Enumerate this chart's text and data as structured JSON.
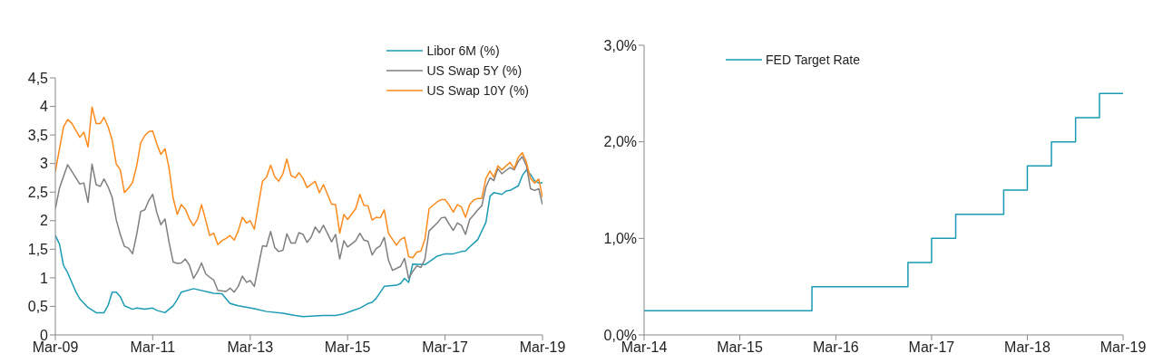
{
  "chart_data": [
    {
      "type": "line",
      "legend": "top right",
      "xlim": [
        "2009-03",
        "2019-03"
      ],
      "xticks": [
        {
          "value": "2009-03",
          "label": "Mar-09"
        },
        {
          "value": "2011-03",
          "label": "Mar-11"
        },
        {
          "value": "2013-03",
          "label": "Mar-13"
        },
        {
          "value": "2015-03",
          "label": "Mar-15"
        },
        {
          "value": "2017-03",
          "label": "Mar-17"
        },
        {
          "value": "2019-03",
          "label": "Mar-19"
        }
      ],
      "ylim": [
        0,
        4.5
      ],
      "yticks": [
        0,
        {
          "value": 0.5,
          "label": "0,5"
        },
        1,
        {
          "value": 1.5,
          "label": "1,5"
        },
        2,
        {
          "value": 2.5,
          "label": "2,5"
        },
        3,
        {
          "value": 3.5,
          "label": "3,5"
        },
        4,
        {
          "value": 4.5,
          "label": "4,5"
        }
      ],
      "series": [
        {
          "name": "Libor 6M (%)",
          "color": "#1a9bb3",
          "x": [
            "2009-03",
            "2009-04",
            "2009-05",
            "2009-06",
            "2009-08",
            "2009-09",
            "2009-11",
            "2010-01",
            "2010-03",
            "2010-04",
            "2010-05",
            "2010-06",
            "2010-07",
            "2010-08",
            "2010-10",
            "2010-11",
            "2011-01",
            "2011-03",
            "2011-04",
            "2011-06",
            "2011-08",
            "2011-09",
            "2011-10",
            "2012-01",
            "2012-06",
            "2012-08",
            "2012-10",
            "2012-12",
            "2013-04",
            "2013-07",
            "2013-11",
            "2014-02",
            "2014-04",
            "2014-09",
            "2014-12",
            "2015-02",
            "2015-04",
            "2015-06",
            "2015-08",
            "2015-09",
            "2015-10",
            "2015-12",
            "2016-03",
            "2016-04",
            "2016-05",
            "2016-06",
            "2016-07",
            "2016-10",
            "2016-12",
            "2017-01",
            "2017-03",
            "2017-05",
            "2017-07",
            "2017-08",
            "2017-09",
            "2017-11",
            "2018-01",
            "2018-02",
            "2018-03",
            "2018-05",
            "2018-06",
            "2018-07",
            "2018-09",
            "2018-10",
            "2018-11",
            "2018-12",
            "2019-01",
            "2019-02",
            "2019-03"
          ],
          "values": [
            1.74,
            1.59,
            1.22,
            1.09,
            0.76,
            0.63,
            0.48,
            0.39,
            0.39,
            0.52,
            0.75,
            0.75,
            0.67,
            0.51,
            0.45,
            0.47,
            0.45,
            0.47,
            0.43,
            0.39,
            0.51,
            0.62,
            0.75,
            0.81,
            0.73,
            0.72,
            0.55,
            0.51,
            0.46,
            0.41,
            0.38,
            0.34,
            0.32,
            0.34,
            0.34,
            0.37,
            0.42,
            0.47,
            0.55,
            0.57,
            0.64,
            0.85,
            0.87,
            0.9,
            0.99,
            0.92,
            1.24,
            1.23,
            1.33,
            1.38,
            1.42,
            1.42,
            1.46,
            1.47,
            1.54,
            1.67,
            1.97,
            2.43,
            2.49,
            2.46,
            2.52,
            2.53,
            2.61,
            2.79,
            2.89,
            2.81,
            2.7,
            2.66,
            2.66
          ]
        },
        {
          "name": "US Swap 5Y (%)",
          "color": "#7f7f7f",
          "x": [
            "2009-03",
            "2009-04",
            "2009-06",
            "2009-09",
            "2009-10",
            "2009-11",
            "2009-12",
            "2010-01",
            "2010-02",
            "2010-03",
            "2010-04",
            "2010-05",
            "2010-06",
            "2010-07",
            "2010-08",
            "2010-09",
            "2010-10",
            "2010-11",
            "2010-12",
            "2011-01",
            "2011-02",
            "2011-03",
            "2011-04",
            "2011-05",
            "2011-06",
            "2011-07",
            "2011-08",
            "2011-09",
            "2011-10",
            "2011-11",
            "2011-12",
            "2012-01",
            "2012-02",
            "2012-03",
            "2012-04",
            "2012-05",
            "2012-06",
            "2012-07",
            "2012-09",
            "2012-10",
            "2012-11",
            "2012-12",
            "2013-01",
            "2013-02",
            "2013-03",
            "2013-04",
            "2013-05",
            "2013-06",
            "2013-07",
            "2013-08",
            "2013-09",
            "2013-10",
            "2013-11",
            "2013-12",
            "2014-01",
            "2014-02",
            "2014-03",
            "2014-04",
            "2014-05",
            "2014-06",
            "2014-07",
            "2014-08",
            "2014-09",
            "2014-11",
            "2014-12",
            "2015-01",
            "2015-02",
            "2015-03",
            "2015-05",
            "2015-06",
            "2015-07",
            "2015-08",
            "2015-09",
            "2015-10",
            "2015-11",
            "2015-12",
            "2016-01",
            "2016-02",
            "2016-04",
            "2016-05",
            "2016-06",
            "2016-07",
            "2016-08",
            "2016-09",
            "2016-10",
            "2016-11",
            "2017-01",
            "2017-02",
            "2017-03",
            "2017-04",
            "2017-05",
            "2017-06",
            "2017-07",
            "2017-08",
            "2017-09",
            "2017-10",
            "2017-11",
            "2017-12",
            "2018-01",
            "2018-02",
            "2018-03",
            "2018-04",
            "2018-05",
            "2018-06",
            "2018-07",
            "2018-08",
            "2018-09",
            "2018-10",
            "2018-11",
            "2018-12",
            "2019-01",
            "2019-02",
            "2019-03"
          ],
          "values": [
            2.21,
            2.57,
            2.98,
            2.64,
            2.66,
            2.32,
            2.99,
            2.63,
            2.6,
            2.73,
            2.59,
            2.41,
            2.01,
            1.76,
            1.55,
            1.52,
            1.42,
            1.76,
            2.16,
            2.19,
            2.36,
            2.46,
            2.14,
            1.93,
            2.03,
            1.63,
            1.28,
            1.25,
            1.26,
            1.33,
            1.22,
            0.99,
            1.11,
            1.26,
            1.07,
            1.01,
            0.96,
            0.78,
            0.76,
            0.82,
            0.75,
            0.85,
            1.03,
            0.92,
            0.95,
            0.85,
            1.2,
            1.56,
            1.55,
            1.81,
            1.53,
            1.46,
            1.48,
            1.77,
            1.61,
            1.61,
            1.79,
            1.76,
            1.62,
            1.71,
            1.89,
            1.79,
            1.92,
            1.63,
            1.76,
            1.33,
            1.65,
            1.54,
            1.65,
            1.78,
            1.66,
            1.64,
            1.4,
            1.51,
            1.56,
            1.71,
            1.31,
            1.13,
            1.2,
            1.34,
            0.99,
            1.11,
            1.21,
            1.18,
            1.33,
            1.82,
            1.96,
            2.05,
            2.06,
            1.94,
            1.83,
            1.96,
            1.92,
            1.76,
            2.02,
            2.1,
            2.19,
            2.26,
            2.59,
            2.75,
            2.7,
            2.91,
            2.82,
            2.88,
            2.93,
            2.89,
            3.04,
            3.12,
            2.96,
            2.56,
            2.53,
            2.56,
            2.28
          ]
        },
        {
          "name": "US Swap 10Y (%)",
          "color": "#ff8a1c",
          "x": [
            "2009-03",
            "2009-05",
            "2009-06",
            "2009-07",
            "2009-09",
            "2009-10",
            "2009-11",
            "2009-12",
            "2010-01",
            "2010-02",
            "2010-03",
            "2010-04",
            "2010-05",
            "2010-06",
            "2010-07",
            "2010-08",
            "2010-09",
            "2010-10",
            "2010-11",
            "2010-12",
            "2011-01",
            "2011-02",
            "2011-03",
            "2011-04",
            "2011-05",
            "2011-06",
            "2011-07",
            "2011-08",
            "2011-09",
            "2011-10",
            "2011-11",
            "2011-12",
            "2012-01",
            "2012-02",
            "2012-03",
            "2012-04",
            "2012-05",
            "2012-06",
            "2012-07",
            "2012-08",
            "2012-09",
            "2012-10",
            "2012-11",
            "2012-12",
            "2013-01",
            "2013-02",
            "2013-03",
            "2013-04",
            "2013-05",
            "2013-06",
            "2013-07",
            "2013-08",
            "2013-09",
            "2013-10",
            "2013-11",
            "2013-12",
            "2014-01",
            "2014-02",
            "2014-03",
            "2014-04",
            "2014-05",
            "2014-07",
            "2014-08",
            "2014-09",
            "2014-11",
            "2014-12",
            "2015-01",
            "2015-02",
            "2015-03",
            "2015-05",
            "2015-06",
            "2015-07",
            "2015-08",
            "2015-09",
            "2015-10",
            "2015-11",
            "2015-12",
            "2016-01",
            "2016-03",
            "2016-04",
            "2016-05",
            "2016-06",
            "2016-07",
            "2016-08",
            "2016-09",
            "2016-10",
            "2016-11",
            "2017-01",
            "2017-02",
            "2017-03",
            "2017-04",
            "2017-05",
            "2017-06",
            "2017-07",
            "2017-08",
            "2017-09",
            "2017-10",
            "2017-11",
            "2017-12",
            "2018-01",
            "2018-02",
            "2018-03",
            "2018-04",
            "2018-05",
            "2018-06",
            "2018-07",
            "2018-08",
            "2018-09",
            "2018-10",
            "2018-11",
            "2018-12",
            "2019-01",
            "2019-02",
            "2019-03"
          ],
          "values": [
            2.86,
            3.64,
            3.77,
            3.71,
            3.46,
            3.55,
            3.29,
            3.99,
            3.7,
            3.7,
            3.81,
            3.64,
            3.41,
            2.99,
            2.89,
            2.49,
            2.57,
            2.67,
            2.96,
            3.36,
            3.49,
            3.56,
            3.57,
            3.34,
            3.16,
            3.26,
            2.93,
            2.4,
            2.11,
            2.28,
            2.2,
            2.03,
            1.91,
            2.03,
            2.28,
            2.01,
            1.74,
            1.78,
            1.58,
            1.65,
            1.69,
            1.74,
            1.66,
            1.82,
            2.06,
            1.96,
            2.0,
            1.85,
            2.27,
            2.69,
            2.76,
            2.97,
            2.77,
            2.69,
            2.82,
            3.08,
            2.79,
            2.75,
            2.84,
            2.74,
            2.58,
            2.69,
            2.49,
            2.63,
            2.29,
            2.28,
            1.78,
            2.11,
            2.02,
            2.21,
            2.46,
            2.27,
            2.26,
            2.01,
            2.06,
            2.05,
            2.19,
            1.78,
            1.57,
            1.67,
            1.71,
            1.37,
            1.35,
            1.45,
            1.47,
            1.68,
            2.21,
            2.33,
            2.37,
            2.37,
            2.27,
            2.15,
            2.28,
            2.24,
            2.06,
            2.28,
            2.36,
            2.39,
            2.39,
            2.74,
            2.87,
            2.76,
            2.96,
            2.89,
            2.96,
            3.02,
            2.91,
            3.11,
            3.19,
            3.02,
            2.74,
            2.66,
            2.73,
            2.41
          ]
        }
      ]
    },
    {
      "type": "step",
      "legend": "top left",
      "xlim": [
        "2014-03",
        "2019-03"
      ],
      "xticks": [
        {
          "value": "2014-03",
          "label": "Mar-14"
        },
        {
          "value": "2015-03",
          "label": "Mar-15"
        },
        {
          "value": "2016-03",
          "label": "Mar-16"
        },
        {
          "value": "2017-03",
          "label": "Mar-17"
        },
        {
          "value": "2018-03",
          "label": "Mar-18"
        },
        {
          "value": "2019-03",
          "label": "Mar-19"
        }
      ],
      "ylim": [
        0,
        3
      ],
      "yticks": [
        {
          "value": 0,
          "label": "0,0%"
        },
        {
          "value": 1,
          "label": "1,0%"
        },
        {
          "value": 2,
          "label": "2,0%"
        },
        {
          "value": 3,
          "label": "3,0%"
        }
      ],
      "series": [
        {
          "name": "FED Target Rate",
          "color": "#1a9bb3",
          "x": [
            "2014-03",
            "2015-12",
            "2016-12",
            "2017-03",
            "2017-06",
            "2017-12",
            "2018-03",
            "2018-06",
            "2018-09",
            "2018-12",
            "2019-03"
          ],
          "values": [
            0.25,
            0.5,
            0.75,
            1,
            1.25,
            1.5,
            1.75,
            2,
            2.25,
            2.5,
            2.5
          ]
        }
      ]
    }
  ]
}
